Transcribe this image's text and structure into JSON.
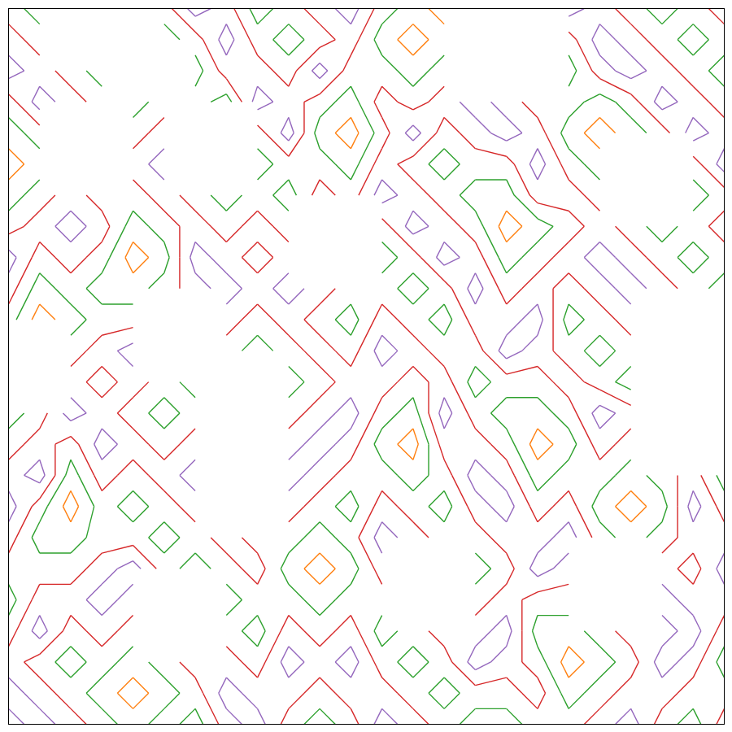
{
  "chart_data": {
    "type": "contour",
    "levels": [
      2,
      4,
      6,
      8
    ],
    "colors": [
      "#ff7f0e",
      "#2ca02c",
      "#d62728",
      "#9467bd"
    ],
    "xlim": [
      0,
      23
    ],
    "ylim": [
      23,
      0
    ],
    "tick_labels": false,
    "z": [
      [
        5,
        3,
        7,
        null,
        null,
        5,
        9,
        7,
        3,
        5,
        7,
        9,
        5,
        3,
        1,
        3,
        5,
        7,
        9,
        7,
        5,
        3,
        5,
        7
      ],
      [
        7,
        5,
        null,
        null,
        null,
        3,
        5,
        9,
        5,
        3,
        5,
        7,
        3,
        1,
        3,
        null,
        null,
        null,
        5,
        9,
        7,
        5,
        3,
        5
      ],
      [
        9,
        7,
        5,
        3,
        null,
        null,
        3,
        7,
        7,
        5,
        9,
        5,
        5,
        3,
        5,
        null,
        null,
        null,
        3,
        7,
        9,
        7,
        5,
        3
      ],
      [
        5,
        9,
        7,
        5,
        3,
        5,
        5,
        3,
        9,
        7,
        5,
        3,
        7,
        5,
        7,
        9,
        7,
        5,
        5,
        3,
        5,
        9,
        7,
        5
      ],
      [
        3,
        5,
        null,
        null,
        5,
        7,
        null,
        null,
        5,
        9,
        3,
        1,
        5,
        9,
        5,
        7,
        9,
        7,
        3,
        1,
        3,
        5,
        9,
        7
      ],
      [
        1,
        3,
        null,
        null,
        7,
        9,
        null,
        null,
        3,
        5,
        5,
        3,
        7,
        5,
        3,
        5,
        5,
        9,
        5,
        3,
        null,
        null,
        5,
        9
      ],
      [
        3,
        5,
        7,
        5,
        5,
        7,
        5,
        3,
        5,
        3,
        7,
        5,
        9,
        7,
        5,
        3,
        3,
        7,
        7,
        5,
        null,
        null,
        3,
        5
      ],
      [
        5,
        7,
        9,
        7,
        3,
        5,
        7,
        5,
        7,
        5,
        null,
        null,
        5,
        9,
        7,
        5,
        1,
        3,
        5,
        7,
        5,
        3,
        5,
        7
      ],
      [
        9,
        5,
        7,
        5,
        1,
        3,
        9,
        7,
        5,
        7,
        null,
        null,
        3,
        5,
        9,
        7,
        3,
        5,
        7,
        9,
        7,
        5,
        3,
        5
      ],
      [
        7,
        3,
        5,
        3,
        3,
        5,
        7,
        9,
        7,
        9,
        7,
        5,
        5,
        3,
        5,
        9,
        5,
        7,
        5,
        7,
        9,
        7,
        5,
        3
      ],
      [
        5,
        1,
        3,
        5,
        5,
        null,
        null,
        7,
        5,
        7,
        5,
        3,
        7,
        5,
        3,
        7,
        7,
        9,
        3,
        5,
        7,
        null,
        null,
        5
      ],
      [
        null,
        null,
        5,
        7,
        9,
        null,
        null,
        5,
        3,
        5,
        7,
        5,
        9,
        7,
        5,
        5,
        9,
        7,
        5,
        3,
        5,
        null,
        null,
        7
      ],
      [
        null,
        null,
        7,
        5,
        7,
        5,
        3,
        null,
        null,
        3,
        5,
        7,
        7,
        5,
        7,
        3,
        5,
        5,
        7,
        5,
        3,
        5,
        7,
        9
      ],
      [
        3,
        5,
        9,
        7,
        5,
        3,
        5,
        null,
        null,
        5,
        7,
        9,
        5,
        3,
        9,
        5,
        3,
        3,
        5,
        9,
        7,
        null,
        null,
        7
      ],
      [
        5,
        7,
        5,
        9,
        7,
        5,
        7,
        5,
        3,
        7,
        9,
        7,
        3,
        1,
        7,
        7,
        5,
        1,
        3,
        7,
        5,
        null,
        null,
        5
      ],
      [
        7,
        9,
        3,
        7,
        5,
        7,
        9,
        null,
        null,
        9,
        7,
        5,
        5,
        3,
        5,
        9,
        7,
        3,
        5,
        5,
        3,
        5,
        7,
        3
      ],
      [
        9,
        5,
        1,
        5,
        3,
        5,
        7,
        null,
        null,
        7,
        5,
        3,
        7,
        5,
        3,
        7,
        9,
        5,
        7,
        3,
        1,
        3,
        9,
        5
      ],
      [
        7,
        3,
        3,
        5,
        5,
        3,
        5,
        7,
        5,
        5,
        3,
        5,
        9,
        7,
        5,
        5,
        7,
        7,
        9,
        5,
        3,
        5,
        7,
        7
      ],
      [
        5,
        5,
        5,
        7,
        9,
        5,
        3,
        5,
        7,
        3,
        1,
        3,
        7,
        null,
        null,
        3,
        5,
        9,
        7,
        null,
        null,
        7,
        5,
        9
      ],
      [
        3,
        7,
        7,
        9,
        7,
        null,
        null,
        3,
        5,
        5,
        3,
        5,
        5,
        null,
        null,
        5,
        7,
        5,
        5,
        null,
        null,
        9,
        7,
        7
      ],
      [
        5,
        9,
        5,
        7,
        5,
        null,
        null,
        5,
        3,
        7,
        5,
        7,
        3,
        5,
        7,
        7,
        9,
        3,
        3,
        5,
        7,
        7,
        9,
        5
      ],
      [
        7,
        5,
        3,
        5,
        3,
        5,
        7,
        7,
        5,
        9,
        7,
        9,
        5,
        3,
        5,
        9,
        7,
        5,
        1,
        3,
        5,
        9,
        7,
        3
      ],
      [
        9,
        7,
        5,
        3,
        1,
        3,
        5,
        9,
        7,
        7,
        5,
        7,
        7,
        5,
        3,
        5,
        5,
        7,
        3,
        5,
        7,
        7,
        5,
        5
      ],
      [
        7,
        9,
        7,
        5,
        3,
        5,
        3,
        7,
        9,
        5,
        3,
        5,
        9,
        7,
        5,
        3,
        3,
        5,
        5,
        7,
        9,
        5,
        3,
        7
      ]
    ]
  }
}
